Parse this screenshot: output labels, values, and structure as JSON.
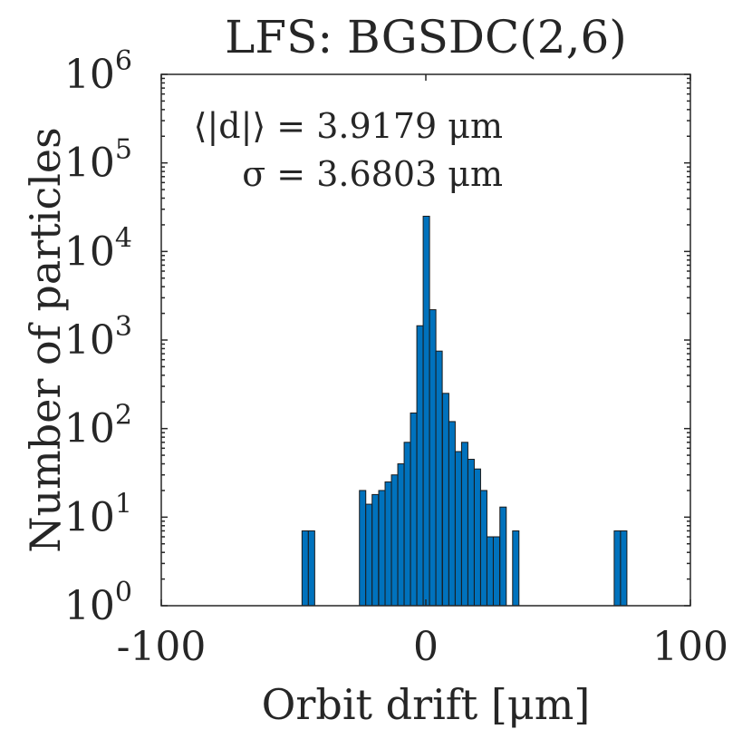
{
  "chart_data": {
    "type": "bar",
    "title": "LFS: BGSDC(2,6)",
    "xlabel": "Orbit drift [μm]",
    "ylabel": "Number of particles",
    "xlim": [
      -100,
      100
    ],
    "ylim": [
      1,
      1000000
    ],
    "yscale": "log",
    "grid": false,
    "bar_color": "#0072BD",
    "bar_edge_color": "#1a1a1a",
    "x_ticks": [
      {
        "value": -100,
        "label": "-100"
      },
      {
        "value": 0,
        "label": "0"
      },
      {
        "value": 100,
        "label": "100"
      }
    ],
    "y_ticks": [
      {
        "value": 1,
        "base": "10",
        "exp": "0"
      },
      {
        "value": 10,
        "base": "10",
        "exp": "1"
      },
      {
        "value": 100,
        "base": "10",
        "exp": "2"
      },
      {
        "value": 1000,
        "base": "10",
        "exp": "3"
      },
      {
        "value": 10000,
        "base": "10",
        "exp": "4"
      },
      {
        "value": 100000,
        "base": "10",
        "exp": "5"
      },
      {
        "value": 1000000,
        "base": "10",
        "exp": "6"
      }
    ],
    "annotations": [
      {
        "text": "⟨|d|⟩ = 3.9179 μm"
      },
      {
        "text": "σ = 3.6803 μm"
      }
    ],
    "bin_width": 2.4,
    "bins": [
      {
        "x": -45.6,
        "value": 7
      },
      {
        "x": -43.2,
        "value": 7
      },
      {
        "x": -23.9,
        "value": 20
      },
      {
        "x": -21.5,
        "value": 14
      },
      {
        "x": -19.1,
        "value": 18
      },
      {
        "x": -16.6,
        "value": 20
      },
      {
        "x": -14.2,
        "value": 25
      },
      {
        "x": -11.8,
        "value": 30
      },
      {
        "x": -9.4,
        "value": 40
      },
      {
        "x": -7.0,
        "value": 70
      },
      {
        "x": -4.6,
        "value": 150
      },
      {
        "x": -2.2,
        "value": 1450
      },
      {
        "x": 0.2,
        "value": 25000
      },
      {
        "x": 2.6,
        "value": 2200
      },
      {
        "x": 5.0,
        "value": 750
      },
      {
        "x": 7.5,
        "value": 250
      },
      {
        "x": 9.9,
        "value": 120
      },
      {
        "x": 12.3,
        "value": 55
      },
      {
        "x": 14.7,
        "value": 70
      },
      {
        "x": 17.1,
        "value": 45
      },
      {
        "x": 19.5,
        "value": 35
      },
      {
        "x": 21.9,
        "value": 20
      },
      {
        "x": 24.3,
        "value": 6
      },
      {
        "x": 26.7,
        "value": 6
      },
      {
        "x": 29.2,
        "value": 13
      },
      {
        "x": 34.0,
        "value": 7
      },
      {
        "x": 72.4,
        "value": 7
      },
      {
        "x": 74.8,
        "value": 7
      }
    ]
  }
}
